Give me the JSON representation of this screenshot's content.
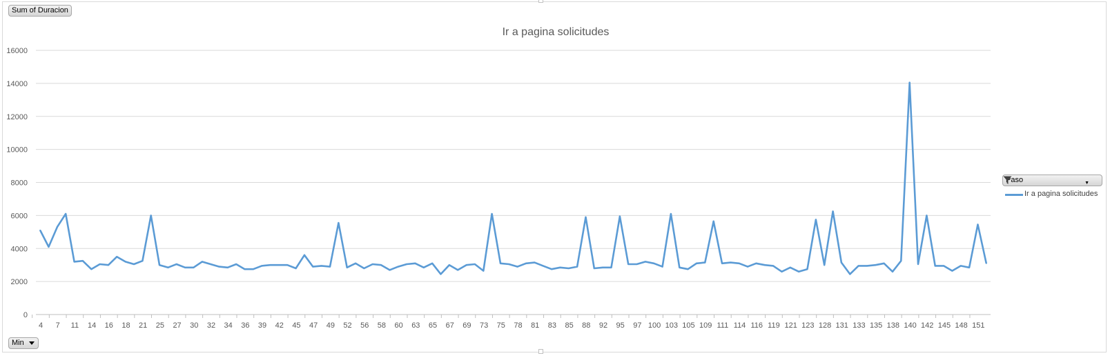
{
  "pivot": {
    "value_field": "Sum of Duracion",
    "axis_field": "Min",
    "legend_field": "Paso",
    "legend_filter_icon": "filter-icon",
    "axis_dropdown_icon": "chevron-down-icon"
  },
  "colors": {
    "series": "#5b9bd5",
    "grid": "#d9d9d9",
    "text": "#595959"
  },
  "chart_data": {
    "type": "line",
    "title": "Ir a pagina solicitudes",
    "xlabel": "",
    "ylabel": "",
    "ylim": [
      0,
      16000
    ],
    "yticks": [
      0,
      2000,
      4000,
      6000,
      8000,
      10000,
      12000,
      14000,
      16000
    ],
    "grid": true,
    "legend_position": "right",
    "x_tick_labels": [
      "4",
      "7",
      "11",
      "14",
      "16",
      "18",
      "21",
      "25",
      "27",
      "30",
      "32",
      "34",
      "36",
      "39",
      "42",
      "45",
      "47",
      "49",
      "52",
      "56",
      "58",
      "60",
      "63",
      "65",
      "67",
      "69",
      "73",
      "75",
      "78",
      "81",
      "83",
      "85",
      "88",
      "92",
      "95",
      "97",
      "100",
      "103",
      "105",
      "109",
      "111",
      "114",
      "116",
      "119",
      "121",
      "123",
      "128",
      "131",
      "133",
      "135",
      "138",
      "140",
      "142",
      "145",
      "148",
      "151"
    ],
    "series": [
      {
        "name": "Ir a pagina solicitudes",
        "values": [
          5100,
          4100,
          5300,
          6100,
          3200,
          3250,
          2750,
          3050,
          3000,
          3500,
          3200,
          3050,
          3250,
          6000,
          3000,
          2850,
          3050,
          2850,
          2850,
          3200,
          3050,
          2900,
          2850,
          3050,
          2750,
          2750,
          2950,
          3000,
          3000,
          3000,
          2800,
          3600,
          2900,
          2950,
          2900,
          5550,
          2850,
          3100,
          2800,
          3050,
          3000,
          2700,
          2900,
          3050,
          3100,
          2850,
          3100,
          2450,
          3000,
          2700,
          3000,
          3050,
          2650,
          6100,
          3100,
          3050,
          2900,
          3100,
          3150,
          2950,
          2750,
          2850,
          2800,
          2900,
          5900,
          2800,
          2850,
          2850,
          5950,
          3050,
          3050,
          3200,
          3100,
          2900,
          6100,
          2850,
          2750,
          3100,
          3150,
          5650,
          3100,
          3150,
          3100,
          2900,
          3100,
          3000,
          2950,
          2600,
          2850,
          2600,
          2750,
          5750,
          3000,
          6250,
          3150,
          2450,
          2950,
          2950,
          3000,
          3100,
          2600,
          3250,
          14050,
          3050,
          6000,
          2950,
          2950,
          2650,
          2950,
          2850,
          5450,
          3100
        ]
      }
    ]
  }
}
